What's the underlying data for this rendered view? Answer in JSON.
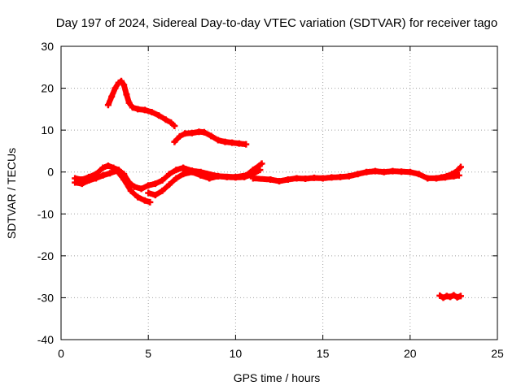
{
  "chart_data": {
    "type": "scatter",
    "title": "Day 197 of 2024, Sidereal Day-to-day VTEC variation (SDTVAR) for receiver tago",
    "xlabel": "GPS time / hours",
    "ylabel": "SDTVAR / TECUs",
    "xlim": [
      0,
      25
    ],
    "ylim": [
      -40,
      30
    ],
    "xticks": [
      "0",
      "5",
      "10",
      "15",
      "20",
      "25"
    ],
    "yticks": [
      "-40",
      "-30",
      "-20",
      "-10",
      "0",
      "10",
      "20",
      "30"
    ],
    "grid": true,
    "marker_color": "#ff0000",
    "series": [
      {
        "name": "arc-high",
        "x": [
          2.7,
          2.9,
          3.1,
          3.3,
          3.45,
          3.6,
          3.75,
          3.9,
          4.1,
          4.4,
          4.8,
          5.2,
          5.6,
          6.0,
          6.3,
          6.5
        ],
        "y": [
          16,
          18,
          20,
          21.3,
          21.7,
          20.8,
          18.5,
          16.5,
          15.4,
          15,
          14.8,
          14.3,
          13.5,
          12.5,
          11.8,
          11
        ]
      },
      {
        "name": "arc-mid",
        "x": [
          6.5,
          6.8,
          7.1,
          7.5,
          7.9,
          8.2,
          8.6,
          9.0,
          9.4,
          9.8,
          10.2,
          10.6
        ],
        "y": [
          7.2,
          8.5,
          9.2,
          9.3,
          9.6,
          9.5,
          8.6,
          7.6,
          7.2,
          7.0,
          6.8,
          6.6
        ]
      },
      {
        "name": "arc-main-a",
        "x": [
          0.8,
          1.2,
          1.6,
          2.0,
          2.4,
          2.7,
          3.0,
          3.3,
          3.6,
          3.9,
          4.2,
          4.6,
          5.0,
          5.4,
          5.8,
          6.2,
          6.6,
          7.0,
          7.5,
          8.0,
          9.0,
          10.0,
          10.6,
          11.0,
          11.5
        ],
        "y": [
          -1.5,
          -1.8,
          -1.2,
          -0.5,
          1.0,
          1.5,
          1.0,
          0.5,
          -0.5,
          -2.5,
          -3.5,
          -4.0,
          -3.2,
          -2.8,
          -2.0,
          -0.5,
          0.5,
          1.0,
          0.3,
          0.0,
          -1.0,
          -1.2,
          -0.8,
          0.5,
          2.0
        ]
      },
      {
        "name": "arc-main-b",
        "x": [
          0.8,
          1.2,
          1.6,
          2.0,
          2.4,
          2.8,
          3.2,
          3.6,
          4.0,
          4.4,
          4.8,
          5.1
        ],
        "y": [
          -2.5,
          -2.8,
          -2.0,
          -1.5,
          -0.8,
          -0.3,
          0.3,
          -1.8,
          -4.5,
          -6.0,
          -6.8,
          -7.2
        ]
      },
      {
        "name": "arc-main-c",
        "x": [
          5.0,
          5.4,
          5.8,
          6.2,
          6.6,
          7.0,
          7.5,
          8.0,
          8.5,
          9.0,
          9.5,
          10.0,
          10.5,
          11.0,
          11.4
        ],
        "y": [
          -5.0,
          -5.5,
          -4.5,
          -3.0,
          -1.5,
          -0.5,
          0.0,
          -0.8,
          -1.5,
          -1.0,
          -1.2,
          -1.3,
          -1.2,
          -0.5,
          0.5
        ]
      },
      {
        "name": "arc-long",
        "x": [
          11.0,
          12.0,
          12.5,
          13.0,
          13.5,
          14.0,
          14.5,
          15.0,
          15.5,
          16.0,
          16.5,
          17.0,
          17.5,
          18.0,
          18.5,
          19.0,
          19.5,
          20.0,
          20.5,
          21.0,
          21.5,
          22.0,
          22.5,
          22.8
        ],
        "y": [
          -1.5,
          -1.8,
          -2.2,
          -1.8,
          -1.5,
          -1.6,
          -1.4,
          -1.5,
          -1.3,
          -1.2,
          -1.0,
          -0.5,
          0.0,
          0.2,
          0.0,
          0.2,
          0.1,
          0.0,
          -0.5,
          -1.5,
          -1.5,
          -1.3,
          -1.0,
          -0.8
        ]
      },
      {
        "name": "arc-end",
        "x": [
          21.5,
          21.8,
          22.1,
          22.4,
          22.7,
          22.9
        ],
        "y": [
          -1.5,
          -1.3,
          -1.0,
          -0.5,
          0.3,
          1.2
        ]
      },
      {
        "name": "arc-low",
        "x": [
          21.7,
          21.9,
          22.1,
          22.3,
          22.5,
          22.7,
          22.9
        ],
        "y": [
          -29.5,
          -30.0,
          -29.6,
          -29.8,
          -29.4,
          -29.9,
          -29.6
        ]
      }
    ]
  }
}
